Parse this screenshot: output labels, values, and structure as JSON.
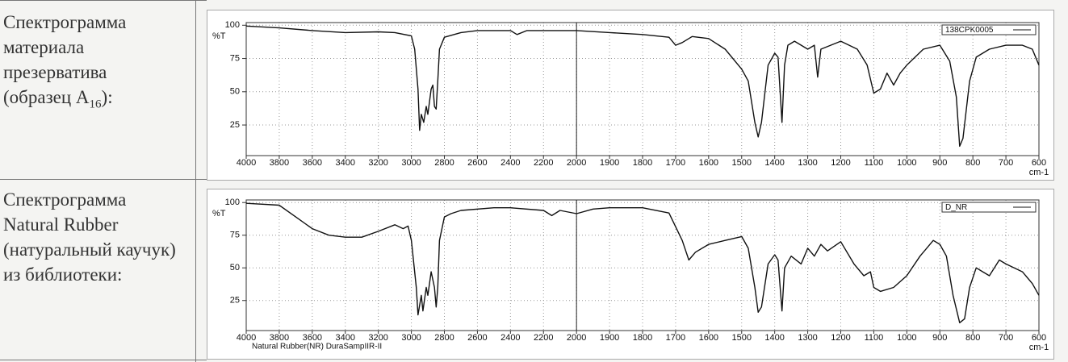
{
  "table": {
    "rows": [
      {
        "label_pre": "Спектрограмма материала презерватива (образец A",
        "label_sub": "16",
        "label_post": "):"
      },
      {
        "label": "Спектрограмма Natural Rubber (натуральный каучук) из библиотеки:"
      }
    ]
  },
  "chart_data": [
    {
      "type": "line",
      "ylabel": "%T",
      "xlabel": "cm-1",
      "xlim": [
        4000,
        600
      ],
      "xbreak": 2000,
      "xbreak_scale": 2,
      "xticks": [
        4000,
        3800,
        3600,
        3400,
        3200,
        3000,
        2800,
        2600,
        2400,
        2200,
        2000,
        1900,
        1800,
        1700,
        1600,
        1500,
        1400,
        1300,
        1200,
        1100,
        1000,
        900,
        800,
        700,
        600
      ],
      "ylim": [
        2,
        102
      ],
      "yticks": [
        25,
        50,
        75,
        100
      ],
      "grid": true,
      "x": [
        4000,
        3800,
        3600,
        3400,
        3200,
        3100,
        3000,
        2980,
        2960,
        2950,
        2940,
        2925,
        2910,
        2900,
        2880,
        2870,
        2860,
        2850,
        2840,
        2830,
        2800,
        2700,
        2600,
        2400,
        2360,
        2300,
        2000,
        1900,
        1800,
        1720,
        1700,
        1680,
        1650,
        1600,
        1550,
        1500,
        1480,
        1460,
        1450,
        1440,
        1420,
        1400,
        1390,
        1378,
        1370,
        1360,
        1340,
        1300,
        1280,
        1270,
        1260,
        1200,
        1150,
        1120,
        1100,
        1080,
        1060,
        1040,
        1020,
        1000,
        950,
        900,
        870,
        850,
        840,
        830,
        810,
        790,
        750,
        700,
        650,
        620,
        600
      ],
      "series": [
        {
          "name": "138CPK0005",
          "color": "#111111",
          "values": [
            99.4,
            98,
            96,
            94.5,
            95,
            94.5,
            92,
            82,
            52,
            21,
            33,
            27,
            39,
            33,
            52,
            55,
            39,
            37,
            58,
            82,
            91,
            94.5,
            96,
            96,
            93,
            96,
            96,
            94.5,
            93,
            91,
            85,
            87,
            91.5,
            90,
            82,
            67,
            58,
            27,
            16,
            27,
            70,
            79,
            76,
            27,
            70,
            85,
            88,
            82,
            85,
            61,
            82,
            88,
            82,
            70,
            49,
            52,
            64,
            55,
            64,
            70,
            82,
            85,
            73,
            46,
            9,
            15,
            58,
            76,
            82,
            85,
            85,
            82,
            70
          ]
        }
      ]
    },
    {
      "type": "line",
      "ylabel": "%T",
      "xlabel": "cm-1",
      "footnote": "Natural Rubber(NR)  DuraSampIIR-II",
      "xlim": [
        4000,
        600
      ],
      "xbreak": 2000,
      "xbreak_scale": 2,
      "xticks": [
        4000,
        3800,
        3600,
        3400,
        3200,
        3000,
        2800,
        2600,
        2400,
        2200,
        2000,
        1900,
        1800,
        1700,
        1600,
        1500,
        1400,
        1300,
        1200,
        1100,
        1000,
        900,
        800,
        700,
        600
      ],
      "ylim": [
        2,
        102
      ],
      "yticks": [
        25,
        50,
        75,
        100
      ],
      "grid": true,
      "x": [
        4000,
        3800,
        3700,
        3600,
        3500,
        3400,
        3300,
        3200,
        3100,
        3050,
        3020,
        3000,
        2970,
        2960,
        2940,
        2930,
        2910,
        2900,
        2880,
        2860,
        2850,
        2840,
        2830,
        2800,
        2760,
        2700,
        2500,
        2400,
        2200,
        2150,
        2100,
        2000,
        1950,
        1900,
        1800,
        1720,
        1680,
        1660,
        1640,
        1600,
        1550,
        1500,
        1480,
        1460,
        1450,
        1440,
        1420,
        1400,
        1390,
        1378,
        1370,
        1350,
        1320,
        1300,
        1280,
        1260,
        1240,
        1200,
        1160,
        1130,
        1110,
        1100,
        1080,
        1040,
        1000,
        960,
        920,
        900,
        880,
        860,
        840,
        825,
        810,
        790,
        770,
        750,
        720,
        700,
        650,
        620,
        600
      ],
      "series": [
        {
          "name": "D_NR",
          "color": "#111111",
          "values": [
            99.4,
            98,
            89,
            80,
            75,
            73.5,
            73.5,
            78,
            83,
            80,
            82,
            71,
            35,
            14,
            29,
            17,
            35,
            29,
            47,
            35,
            20,
            35,
            71,
            89,
            91.5,
            94,
            96,
            96,
            94,
            90,
            94,
            91.5,
            95,
            96,
            96,
            92,
            71,
            56,
            62,
            68,
            71,
            74,
            65,
            35,
            16,
            20,
            53,
            60,
            56,
            17,
            50,
            59,
            53,
            65,
            59,
            68,
            63,
            70,
            53,
            44,
            47,
            35,
            32,
            35,
            44,
            59,
            71,
            68,
            59,
            29,
            8,
            11,
            35,
            50,
            47,
            44,
            56,
            53,
            47,
            38,
            29
          ]
        }
      ]
    }
  ]
}
